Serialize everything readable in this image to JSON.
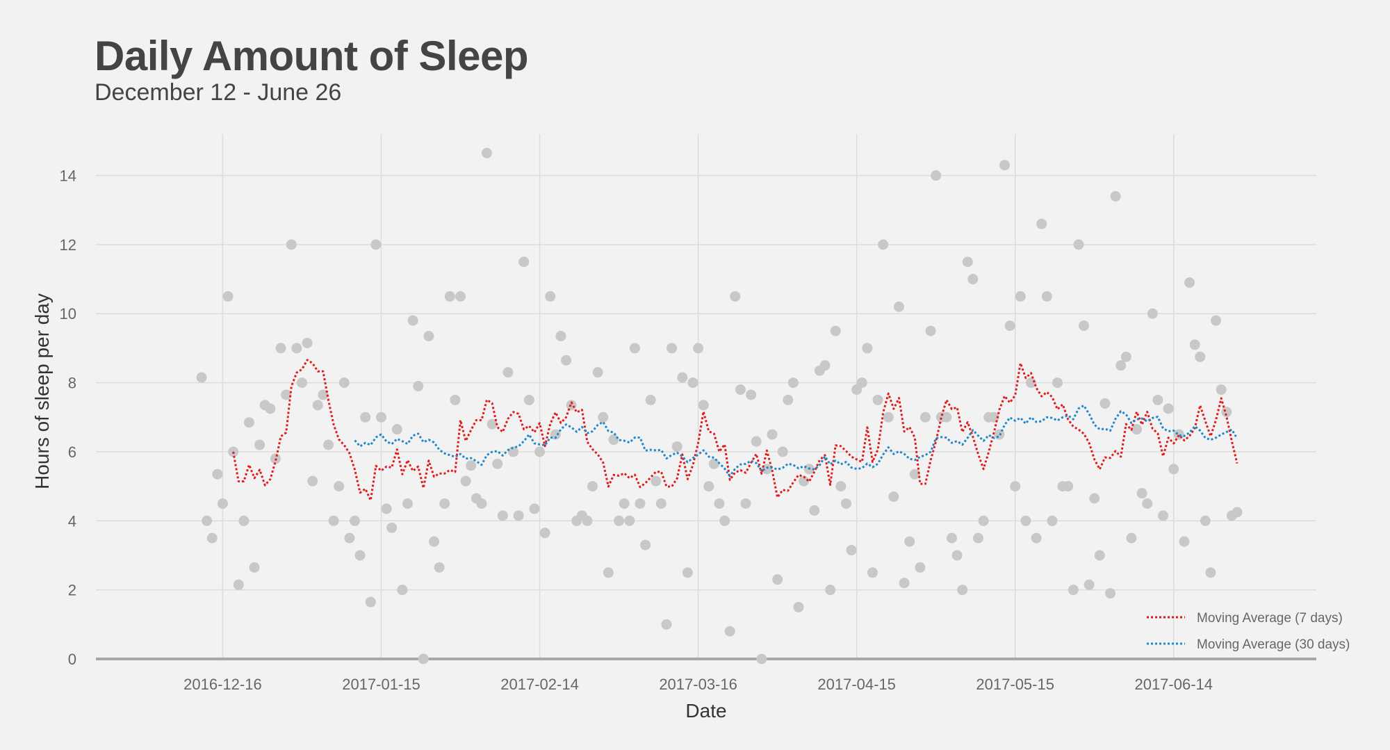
{
  "chart_data": {
    "type": "scatter",
    "title": "Daily Amount of Sleep",
    "subtitle": "December 12 - June 26",
    "xlabel": "Date",
    "ylabel": "Hours of sleep per day",
    "xlim": [
      "2016-11-22",
      "2017-07-11"
    ],
    "ylim": [
      0,
      15.5
    ],
    "x_ticks": [
      "2016-12-16",
      "2017-01-15",
      "2017-02-14",
      "2017-03-16",
      "2017-04-15",
      "2017-05-15",
      "2017-06-14"
    ],
    "y_ticks": [
      0,
      2,
      4,
      6,
      8,
      10,
      12,
      14
    ],
    "grid": true,
    "legend": {
      "placement": "bottom-right"
    },
    "start_date": "2016-12-12",
    "values": [
      8.15,
      4.0,
      3.5,
      5.35,
      4.5,
      10.5,
      6.0,
      2.15,
      4.0,
      6.85,
      2.65,
      6.2,
      7.35,
      7.25,
      5.8,
      9.0,
      7.65,
      12.0,
      9.0,
      8.0,
      9.15,
      5.15,
      7.35,
      7.65,
      6.2,
      4.0,
      5.0,
      8.0,
      3.5,
      4.0,
      3.0,
      7.0,
      1.65,
      12.0,
      7.0,
      4.35,
      3.8,
      6.65,
      2.0,
      4.5,
      9.8,
      7.9,
      0.0,
      9.35,
      3.4,
      2.65,
      4.5,
      10.5,
      7.5,
      10.5,
      5.15,
      5.6,
      4.65,
      4.5,
      14.65,
      6.8,
      5.65,
      4.15,
      8.3,
      6.0,
      4.15,
      11.5,
      7.5,
      4.35,
      6.0,
      3.65,
      10.5,
      6.5,
      9.35,
      8.65,
      7.35,
      4.0,
      4.15,
      4.0,
      5.0,
      8.3,
      7.0,
      2.5,
      6.35,
      4.0,
      4.5,
      4.0,
      9.0,
      4.5,
      3.3,
      7.5,
      5.15,
      4.5,
      1.0,
      9.0,
      6.15,
      8.15,
      2.5,
      8.0,
      9.0,
      7.35,
      5.0,
      5.65,
      4.5,
      4.0,
      0.8,
      10.5,
      7.8,
      4.5,
      7.65,
      6.3,
      0.0,
      5.5,
      6.5,
      2.3,
      6.0,
      7.5,
      8.0,
      1.5,
      5.15,
      5.5,
      4.3,
      8.35,
      8.5,
      2.0,
      9.5,
      5.0,
      4.5,
      3.15,
      7.8,
      8.0,
      9.0,
      2.5,
      7.5,
      12.0,
      7.0,
      4.7,
      10.2,
      2.2,
      3.4,
      5.35,
      2.65,
      7.0,
      9.5,
      14.0,
      7.0,
      7.0,
      3.5,
      3.0,
      2.0,
      11.5,
      11.0,
      3.5,
      4.0,
      7.0,
      7.0,
      6.5,
      14.3,
      9.65,
      5.0,
      10.5,
      4.0,
      8.0,
      3.5,
      12.6,
      10.5,
      4.0,
      8.0,
      5.0,
      5.0,
      2.0,
      12.0,
      9.65,
      2.15,
      4.65,
      3.0,
      7.4,
      1.9,
      13.4,
      8.5,
      8.75,
      3.5,
      6.65,
      4.8,
      4.5,
      10.0,
      7.5,
      4.15,
      7.25,
      5.5,
      6.5,
      3.4,
      10.9,
      9.1,
      8.75,
      4.0,
      2.5,
      9.8,
      7.8,
      7.15,
      4.15,
      4.25
    ],
    "series": [
      {
        "name": "Moving Average (7 days)",
        "color": "#e31a1c",
        "window": 7
      },
      {
        "name": "Moving Average (30 days)",
        "color": "#1f88c9",
        "window": 30
      }
    ],
    "point_color": "#c8c8c8"
  }
}
